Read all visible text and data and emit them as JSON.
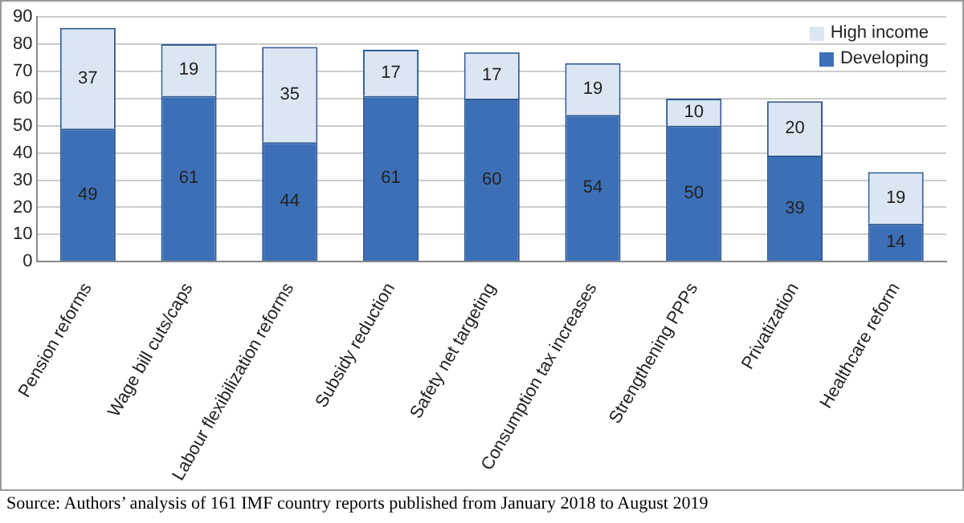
{
  "chart_data": {
    "type": "bar",
    "stacked": true,
    "categories": [
      "Pension reforms",
      "Wage bill cuts/caps",
      "Labour flexibilization reforms",
      "Subsidy reduction",
      "Safety net targeting",
      "Consumption tax increases",
      "Strengthening PPPs",
      "Privatization",
      "Healthcare reform"
    ],
    "series": [
      {
        "name": "Developing",
        "color": "#3d6fb6",
        "values": [
          49,
          61,
          44,
          61,
          60,
          54,
          50,
          39,
          14
        ]
      },
      {
        "name": "High income",
        "color": "#dce6f2",
        "values": [
          37,
          19,
          35,
          17,
          17,
          19,
          10,
          20,
          19
        ]
      }
    ],
    "ylim": [
      0,
      90
    ],
    "yticks": [
      0,
      10,
      20,
      30,
      40,
      50,
      60,
      70,
      80,
      90
    ],
    "grid": "y",
    "legend": "top right",
    "data_labels": true,
    "annotations": [
      "Source: Authors’ analysis of 161 IMF country reports published from January 2018 to August 2019"
    ]
  }
}
